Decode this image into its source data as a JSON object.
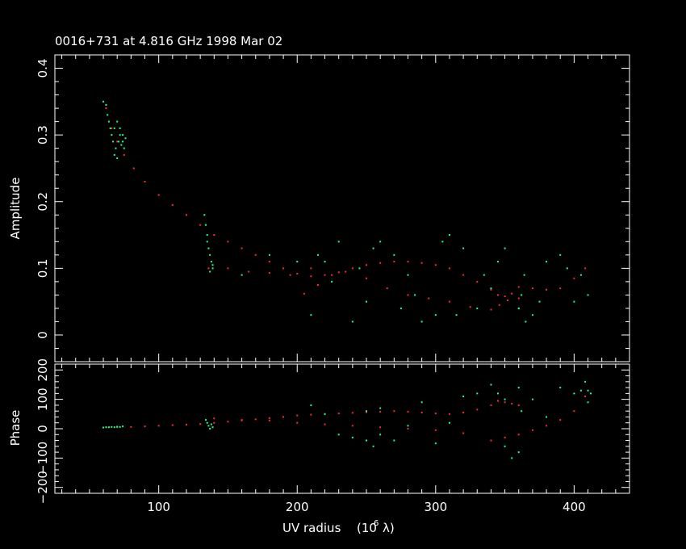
{
  "chart_data": [
    {
      "type": "scatter",
      "panel": "amplitude",
      "title": "0016+731 at 4.816 GHz 1998 Mar 02",
      "xlabel": "UV radius",
      "xlabel_unit": "(10",
      "xlabel_unit_exp": "6",
      "xlabel_unit_sym": "λ)",
      "ylabel": "Amplitude",
      "xlim": [
        25,
        440
      ],
      "ylim": [
        -0.04,
        0.42
      ],
      "x_ticks": [
        100,
        200,
        300,
        400
      ],
      "y_ticks": [
        0,
        0.1,
        0.2,
        0.3,
        0.4
      ],
      "y_tick_labels": [
        "0",
        "0.1",
        "0.2",
        "0.3",
        "0.4"
      ],
      "series": [
        {
          "color": "#ff2a2a",
          "x": [
            62,
            66,
            70,
            75,
            82,
            90,
            100,
            110,
            120,
            130,
            136,
            140,
            150,
            160,
            170,
            180,
            190,
            200,
            210,
            220,
            230,
            240,
            250,
            260,
            270,
            280,
            290,
            300,
            310,
            320,
            330,
            340,
            345,
            350,
            355,
            360,
            370,
            380,
            390,
            400,
            408,
            205,
            215,
            225,
            235,
            250,
            265,
            280,
            295,
            310,
            325,
            340,
            346,
            352,
            360,
            150,
            165,
            180,
            195,
            210
          ],
          "y": [
            0.34,
            0.31,
            0.29,
            0.27,
            0.25,
            0.23,
            0.21,
            0.195,
            0.18,
            0.165,
            0.1,
            0.15,
            0.14,
            0.13,
            0.12,
            0.11,
            0.1,
            0.092,
            0.088,
            0.09,
            0.094,
            0.1,
            0.105,
            0.108,
            0.11,
            0.11,
            0.108,
            0.105,
            0.1,
            0.09,
            0.08,
            0.068,
            0.06,
            0.058,
            0.062,
            0.072,
            0.07,
            0.068,
            0.07,
            0.085,
            0.1,
            0.062,
            0.075,
            0.09,
            0.095,
            0.085,
            0.07,
            0.06,
            0.055,
            0.05,
            0.042,
            0.038,
            0.045,
            0.052,
            0.055,
            0.1,
            0.095,
            0.093,
            0.09,
            0.1
          ]
        },
        {
          "color": "#22ff88",
          "x": [
            60,
            62,
            63,
            64,
            65,
            66,
            67,
            68,
            69,
            70,
            71,
            72,
            73,
            74,
            75,
            76,
            68,
            70,
            72,
            74,
            133,
            134,
            135,
            136,
            137,
            138,
            139,
            135,
            137,
            139,
            210,
            230,
            250,
            270,
            290,
            310,
            330,
            350,
            370,
            390,
            410,
            220,
            240,
            260,
            280,
            300,
            320,
            340,
            360,
            380,
            400,
            215,
            245,
            275,
            305,
            335,
            365,
            395,
            225,
            255,
            285,
            315,
            345,
            375,
            405,
            160,
            180,
            200,
            360,
            362,
            364
          ],
          "y": [
            0.35,
            0.345,
            0.33,
            0.32,
            0.31,
            0.3,
            0.29,
            0.31,
            0.28,
            0.32,
            0.29,
            0.3,
            0.285,
            0.29,
            0.28,
            0.295,
            0.27,
            0.265,
            0.31,
            0.3,
            0.18,
            0.165,
            0.15,
            0.13,
            0.12,
            0.11,
            0.1,
            0.14,
            0.095,
            0.105,
            0.03,
            0.14,
            0.05,
            0.12,
            0.02,
            0.15,
            0.04,
            0.13,
            0.03,
            0.12,
            0.06,
            0.11,
            0.02,
            0.14,
            0.09,
            0.03,
            0.13,
            0.07,
            0.04,
            0.11,
            0.05,
            0.12,
            0.1,
            0.04,
            0.14,
            0.09,
            0.02,
            0.1,
            0.08,
            0.13,
            0.06,
            0.03,
            0.11,
            0.05,
            0.09,
            0.09,
            0.12,
            0.11,
            0.04,
            0.06,
            0.09
          ]
        }
      ]
    },
    {
      "type": "scatter",
      "panel": "phase",
      "ylabel": "Phase",
      "xlim": [
        25,
        440
      ],
      "ylim": [
        -220,
        220
      ],
      "y_ticks": [
        -200,
        -100,
        0,
        100,
        200
      ],
      "y_tick_labels": [
        "−200",
        "−100",
        "0",
        "100",
        "200"
      ],
      "series": [
        {
          "color": "#ff2a2a",
          "x": [
            62,
            70,
            80,
            90,
            100,
            110,
            120,
            130,
            140,
            150,
            160,
            170,
            180,
            190,
            200,
            210,
            220,
            230,
            240,
            250,
            260,
            270,
            280,
            290,
            300,
            310,
            320,
            330,
            340,
            345,
            350,
            355,
            360,
            340,
            350,
            360,
            370,
            380,
            390,
            400,
            408,
            140,
            160,
            180,
            200,
            220,
            240,
            260,
            280,
            300,
            320
          ],
          "y": [
            5,
            5,
            6,
            8,
            10,
            12,
            14,
            16,
            20,
            24,
            28,
            32,
            36,
            40,
            45,
            48,
            50,
            52,
            54,
            56,
            58,
            60,
            58,
            55,
            52,
            50,
            55,
            65,
            80,
            95,
            90,
            85,
            80,
            -40,
            -30,
            -20,
            -5,
            10,
            30,
            60,
            110,
            35,
            30,
            28,
            20,
            15,
            10,
            5,
            0,
            -5,
            -15
          ]
        },
        {
          "color": "#22ff88",
          "x": [
            60,
            62,
            64,
            66,
            68,
            70,
            72,
            74,
            134,
            135,
            136,
            137,
            138,
            139,
            210,
            230,
            250,
            270,
            290,
            310,
            330,
            350,
            370,
            390,
            410,
            220,
            240,
            260,
            280,
            300,
            320,
            340,
            360,
            380,
            400,
            345,
            350,
            355,
            360,
            362,
            405,
            408,
            410,
            412,
            250,
            255,
            260
          ],
          "y": [
            4,
            5,
            5,
            6,
            5,
            7,
            6,
            8,
            30,
            20,
            10,
            0,
            15,
            5,
            80,
            -20,
            60,
            -40,
            90,
            20,
            120,
            -60,
            100,
            140,
            130,
            50,
            -30,
            70,
            10,
            -50,
            110,
            150,
            -80,
            40,
            120,
            120,
            100,
            -100,
            140,
            60,
            130,
            160,
            90,
            120,
            -40,
            -60,
            -20
          ]
        }
      ]
    }
  ]
}
